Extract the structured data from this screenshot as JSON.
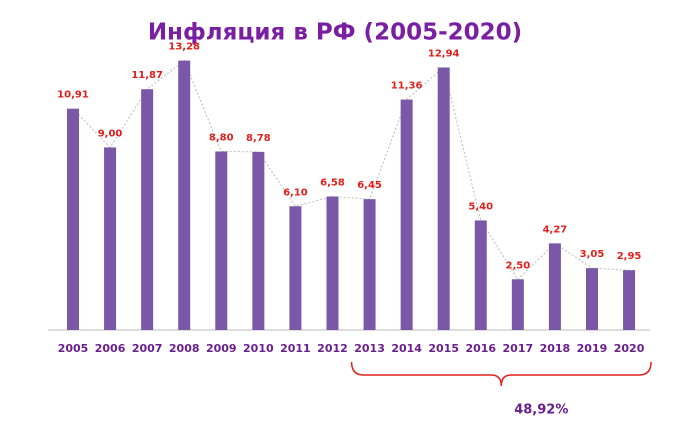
{
  "chart_data": {
    "type": "bar",
    "title": "Инфляция в РФ (2005-2020)",
    "categories": [
      "2005",
      "2006",
      "2007",
      "2008",
      "2009",
      "2010",
      "2011",
      "2012",
      "2013",
      "2014",
      "2015",
      "2016",
      "2017",
      "2018",
      "2019",
      "2020"
    ],
    "values": [
      10.91,
      9.0,
      11.87,
      13.28,
      8.8,
      8.78,
      6.1,
      6.58,
      6.45,
      11.36,
      12.94,
      5.4,
      2.5,
      4.27,
      3.05,
      2.95
    ],
    "value_labels": [
      "10,91",
      "9,00",
      "11,87",
      "13,28",
      "8,80",
      "8,78",
      "6,10",
      "6,58",
      "6,45",
      "11,36",
      "12,94",
      "5,40",
      "2,50",
      "4,27",
      "3,05",
      "2,95"
    ],
    "color": "#7b57a8",
    "label_color": "#e0201b",
    "trend_line": true,
    "ylim": [
      0,
      14
    ],
    "annotation": {
      "text": "48,92%",
      "span": [
        "2013",
        "2020"
      ]
    }
  }
}
